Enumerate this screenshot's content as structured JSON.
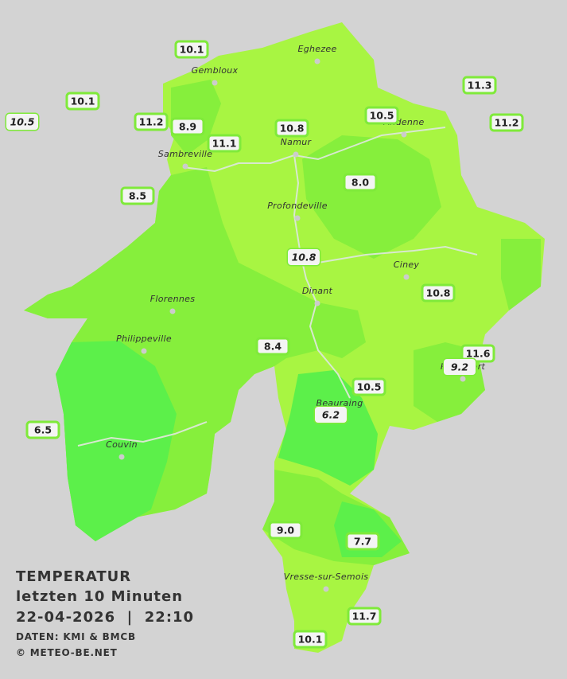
{
  "title": {
    "line1": "TEMPERATUR",
    "line2": "letzten 10 Minuten",
    "datetime": "22-04-2026  |  22:10",
    "source": "DATEN: KMI & BMCB",
    "copyright": "© METEO-BE.NET"
  },
  "cities": [
    "Eghezee",
    "Gembloux",
    "Andenne",
    "Namur",
    "Sambreville",
    "Profondeville",
    "Ciney",
    "Dinant",
    "Florennes",
    "Philippeville",
    "Rochefort",
    "Beauraing",
    "Couvin",
    "Vresse-sur-Semois"
  ],
  "stations": [
    "10.1",
    "10.1",
    "10.5",
    "11.2",
    "8.9",
    "11.1",
    "10.8",
    "10.5",
    "11.3",
    "11.2",
    "8.5",
    "8.0",
    "10.8",
    "10.8",
    "8.4",
    "11.6",
    "9.2",
    "10.5",
    "6.2",
    "6.5",
    "9.0",
    "7.7",
    "11.7",
    "10.1"
  ]
}
